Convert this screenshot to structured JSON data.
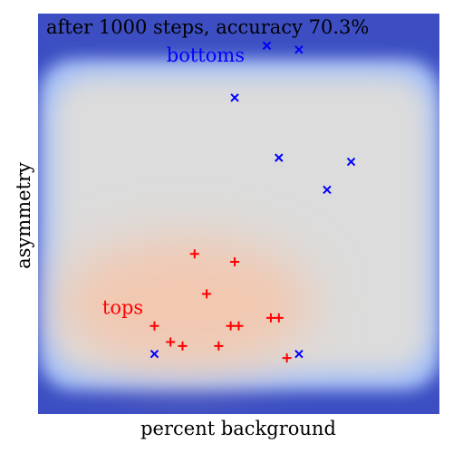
{
  "chart_data": {
    "type": "scatter",
    "title": "after 1000 steps, accuracy 70.3%",
    "xlabel": "percent background",
    "ylabel": "asymmetry",
    "xlim": [
      0,
      1
    ],
    "ylim": [
      0,
      1
    ],
    "grid": false,
    "legend": "none",
    "background": {
      "kind": "classifier-heatmap",
      "colors": {
        "outer": "#3c4ec2",
        "edge": "#9fbcf9",
        "neutral": "#dcdcdc",
        "warm": "#f2c8b0"
      }
    },
    "series": [
      {
        "name": "bottoms",
        "marker": "x",
        "color": "#0000ff",
        "points": [
          [
            0.57,
            0.92
          ],
          [
            0.65,
            0.91
          ],
          [
            0.49,
            0.79
          ],
          [
            0.6,
            0.64
          ],
          [
            0.78,
            0.63
          ],
          [
            0.72,
            0.56
          ],
          [
            0.29,
            0.15
          ],
          [
            0.65,
            0.15
          ]
        ]
      },
      {
        "name": "tops",
        "marker": "+",
        "color": "#ff0000",
        "points": [
          [
            0.39,
            0.4
          ],
          [
            0.49,
            0.38
          ],
          [
            0.42,
            0.3
          ],
          [
            0.29,
            0.22
          ],
          [
            0.48,
            0.22
          ],
          [
            0.5,
            0.22
          ],
          [
            0.58,
            0.24
          ],
          [
            0.6,
            0.24
          ],
          [
            0.33,
            0.18
          ],
          [
            0.36,
            0.17
          ],
          [
            0.45,
            0.17
          ],
          [
            0.62,
            0.14
          ]
        ]
      }
    ],
    "annotations": [
      {
        "text": "bottoms",
        "color": "#0000ff",
        "x": 0.32,
        "y": 0.88
      },
      {
        "text": "tops",
        "color": "#ff0000",
        "x": 0.16,
        "y": 0.25
      }
    ]
  }
}
